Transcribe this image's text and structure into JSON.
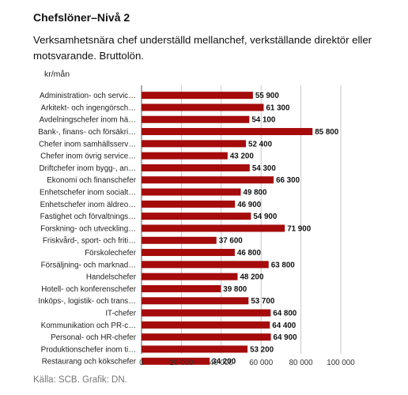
{
  "chart_data": {
    "type": "bar",
    "orientation": "horizontal",
    "title": "Chefslöner–Nivå 2",
    "subtitle": "Verksamhetsnära chef underställd mellanchef, verkställande direktör eller motsvarande. Bruttolön.",
    "unit_label": "kr/mån",
    "source": "Källa: SCB. Grafik: DN.",
    "color": "#a50b0b",
    "xlim": [
      0,
      100000
    ],
    "x_ticks": [
      0,
      20000,
      40000,
      60000,
      80000,
      100000
    ],
    "x_tick_labels": [
      "0",
      "20 000",
      "40 000",
      "60 000",
      "80 000",
      "100 000"
    ],
    "grid": true,
    "categories": [
      "Administration- och servic…",
      "Arkitekt- och ingengörsch…",
      "Avdelningschefer inom hä…",
      "Bank-, finans- och försäkri…",
      "Chefer inom samhällsserv…",
      "Chefer inom övrig service…",
      "Driftchefer inom bygg-, an…",
      "Ekonomi och finanschefer",
      "Enhetschefer inom socialt…",
      "Enhetschefer inom äldreo…",
      "Fastighet och förvaltnings…",
      "Forskning- och utveckling…",
      "Friskvård-, sport- och friti…",
      "Förskolechefer",
      "Försäljning- och marknad…",
      "Handelschefer",
      "Hotell- och konferenschefer",
      "Inköps-, logistik- och trans…",
      "IT-chefer",
      "Kommunikation och PR-c…",
      "Personal- och HR-chefer",
      "Produktionschefer inom ti…",
      "Restaurang och kökschefer"
    ],
    "values": [
      55900,
      61300,
      54100,
      85800,
      52400,
      43200,
      54300,
      66300,
      49800,
      46900,
      54900,
      71900,
      37600,
      46800,
      63800,
      48200,
      39800,
      53700,
      64800,
      64400,
      64900,
      53200,
      34200
    ],
    "value_labels": [
      "55 900",
      "61 300",
      "54 100",
      "85 800",
      "52 400",
      "43 200",
      "54 300",
      "66 300",
      "49 800",
      "46 900",
      "54 900",
      "71 900",
      "37 600",
      "46 800",
      "63 800",
      "48 200",
      "39 800",
      "53 700",
      "64 800",
      "64 400",
      "64 900",
      "53 200",
      "34 200"
    ]
  }
}
